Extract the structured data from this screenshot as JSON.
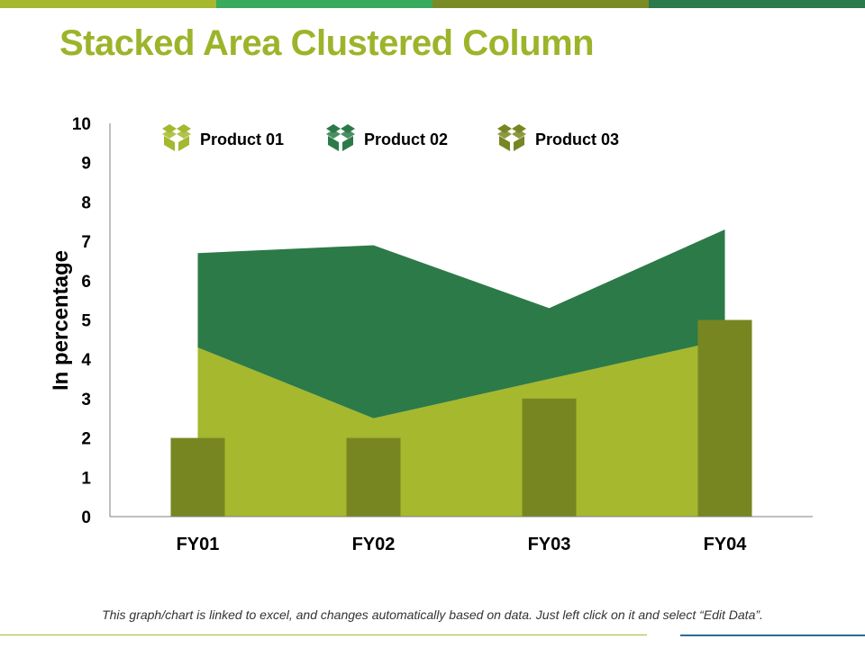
{
  "page": {
    "title": "Stacked Area Clustered Column",
    "footnote": "This graph/chart is linked to excel, and changes automatically based on data. Just left click on it and select “Edit Data”.",
    "top_bar_colors": [
      "#a5b82e",
      "#3aaa5c",
      "#7a8b26",
      "#2b7a4b"
    ],
    "title_color": "#9cb42a"
  },
  "chart_data": {
    "type": "stacked-area-clustered-column",
    "title": "",
    "xlabel": "",
    "ylabel": "In percentage",
    "ylim": [
      0,
      10
    ],
    "yticks": [
      0,
      1,
      2,
      3,
      4,
      5,
      6,
      7,
      8,
      9,
      10
    ],
    "categories": [
      "FY01",
      "FY02",
      "FY03",
      "FY04"
    ],
    "legend_position": "top",
    "grid": false,
    "series": [
      {
        "name": "Product 01",
        "kind": "area",
        "stack": "area",
        "values": [
          4.3,
          2.5,
          3.5,
          4.5
        ],
        "color": "#a5b82e",
        "icon": "box-icon"
      },
      {
        "name": "Product 02",
        "kind": "area",
        "stack": "area",
        "values": [
          2.4,
          4.4,
          1.8,
          2.8
        ],
        "color": "#2c7a48",
        "icon": "box-icon"
      },
      {
        "name": "Product 03",
        "kind": "column",
        "values": [
          2,
          2,
          3,
          5
        ],
        "color": "#788622",
        "icon": "box-icon"
      }
    ]
  }
}
